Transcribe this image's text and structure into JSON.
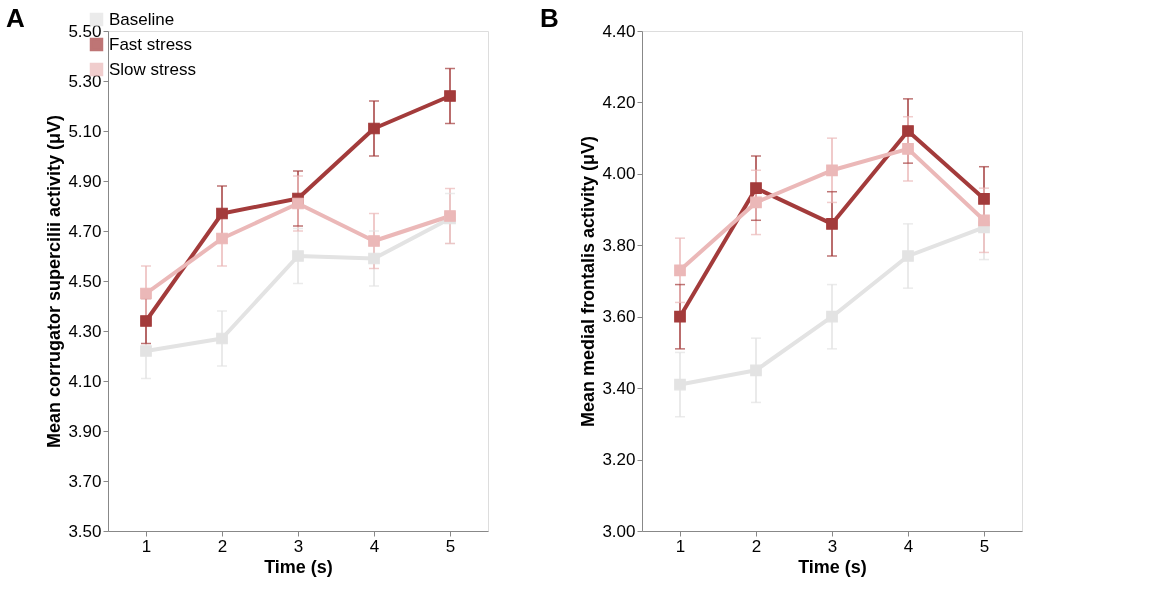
{
  "chart_data": [
    {
      "type": "line",
      "title": "A",
      "xlabel": "Time (s)",
      "ylabel": "Mean corrugator supercilii activity (μV)",
      "x": [
        1,
        2,
        3,
        4,
        5
      ],
      "xlim": [
        0.5,
        5.5
      ],
      "xticks": [
        1,
        2,
        3,
        4,
        5
      ],
      "ylim": [
        3.5,
        5.5
      ],
      "yticks": [
        {
          "value": 3.5,
          "label": "3.50"
        },
        {
          "value": 3.7,
          "label": "3.70"
        },
        {
          "value": 3.9,
          "label": "3.90"
        },
        {
          "value": 4.1,
          "label": "4.10"
        },
        {
          "value": 4.3,
          "label": "4.30"
        },
        {
          "value": 4.5,
          "label": "4.50"
        },
        {
          "value": 4.7,
          "label": "4.70"
        },
        {
          "value": 4.9,
          "label": "4.90"
        },
        {
          "value": 5.1,
          "label": "5.10"
        },
        {
          "value": 5.3,
          "label": "5.30"
        },
        {
          "value": 5.5,
          "label": "5.50"
        }
      ],
      "grid": false,
      "legend": "top left",
      "marker": "square",
      "line_style": "solid",
      "series": [
        {
          "name": "Baseline",
          "color": "#e3e3e3",
          "values": [
            4.22,
            4.27,
            4.6,
            4.59,
            4.75
          ],
          "errors": [
            0.11,
            0.11,
            0.11,
            0.11,
            0.1
          ]
        },
        {
          "name": "Fast stress",
          "color": "#a33b3b",
          "values": [
            4.34,
            4.77,
            4.83,
            5.11,
            5.24
          ],
          "errors": [
            0.09,
            0.11,
            0.11,
            0.11,
            0.11
          ]
        },
        {
          "name": "Slow stress",
          "color": "#ebb8b8",
          "values": [
            4.45,
            4.67,
            4.81,
            4.66,
            4.76
          ],
          "errors": [
            0.11,
            0.11,
            0.11,
            0.11,
            0.11
          ]
        }
      ]
    },
    {
      "type": "line",
      "title": "B",
      "xlabel": "Time (s)",
      "ylabel": "Mean medial frontalis activity (μV)",
      "x": [
        1,
        2,
        3,
        4,
        5
      ],
      "xlim": [
        0.5,
        5.5
      ],
      "xticks": [
        1,
        2,
        3,
        4,
        5
      ],
      "ylim": [
        3.0,
        4.4
      ],
      "yticks": [
        {
          "value": 3.0,
          "label": "3.00"
        },
        {
          "value": 3.2,
          "label": "3.20"
        },
        {
          "value": 3.4,
          "label": "3.40"
        },
        {
          "value": 3.6,
          "label": "3.60"
        },
        {
          "value": 3.8,
          "label": "3.80"
        },
        {
          "value": 4.0,
          "label": "4.00"
        },
        {
          "value": 4.2,
          "label": "4.20"
        },
        {
          "value": 4.4,
          "label": "4.40"
        }
      ],
      "grid": false,
      "legend": "top left",
      "marker": "square",
      "line_style": "solid",
      "series": [
        {
          "name": "Baseline",
          "color": "#e3e3e3",
          "values": [
            3.41,
            3.45,
            3.6,
            3.77,
            3.85
          ],
          "errors": [
            0.09,
            0.09,
            0.09,
            0.09,
            0.09
          ]
        },
        {
          "name": "Fast stress",
          "color": "#a33b3b",
          "values": [
            3.6,
            3.96,
            3.86,
            4.12,
            3.93
          ],
          "errors": [
            0.09,
            0.09,
            0.09,
            0.09,
            0.09
          ]
        },
        {
          "name": "Slow stress",
          "color": "#ebb8b8",
          "values": [
            3.73,
            3.92,
            4.01,
            4.07,
            3.87
          ],
          "errors": [
            0.09,
            0.09,
            0.09,
            0.09,
            0.09
          ]
        }
      ]
    }
  ]
}
